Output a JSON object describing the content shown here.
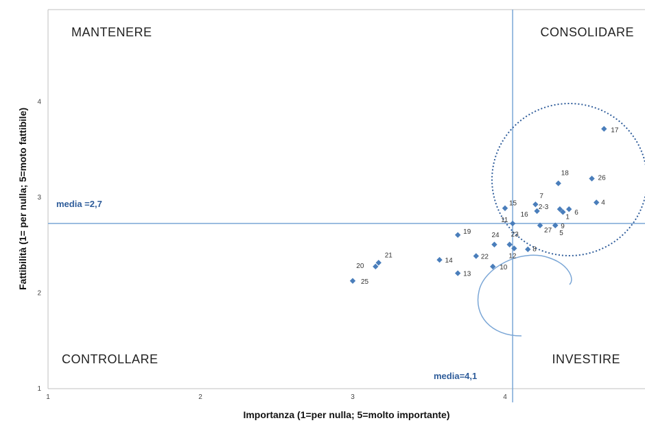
{
  "chart_data": {
    "type": "scatter",
    "xlabel": "Importanza (1=per nulla; 5=molto importante)",
    "ylabel": "Fattibilità (1= per nulla; 5=moto fattibile)",
    "xlim": [
      1,
      4.9
    ],
    "ylim": [
      1,
      5
    ],
    "xticks": [
      "1",
      "2",
      "3",
      "4"
    ],
    "yticks": [
      "1",
      "2",
      "3",
      "4"
    ],
    "grid": false,
    "quadrants": {
      "top_left": "MANTENERE",
      "top_right": "CONSOLIDARE",
      "bottom_left": "CONTROLLARE",
      "bottom_right": "INVESTIRE"
    },
    "mean_x": {
      "value": 4.05,
      "label": "media=4,1"
    },
    "mean_y": {
      "value": 2.72,
      "label": "media =2,7"
    },
    "marker_color": "#4a7ebb",
    "line_color": "#7aa6d6",
    "points": [
      {
        "label": "1",
        "x": 4.38,
        "y": 2.84
      },
      {
        "label": "2-3",
        "x": 4.36,
        "y": 2.87
      },
      {
        "label": "4",
        "x": 4.6,
        "y": 2.94
      },
      {
        "label": "5",
        "x": 4.33,
        "y": 2.7
      },
      {
        "label": "6",
        "x": 4.42,
        "y": 2.87
      },
      {
        "label": "7",
        "x": 4.2,
        "y": 2.92
      },
      {
        "label": "8",
        "x": 4.15,
        "y": 2.45
      },
      {
        "label": "9",
        "x": 4.33,
        "y": 2.7
      },
      {
        "label": "10",
        "x": 3.92,
        "y": 2.27
      },
      {
        "label": "11",
        "x": 4.05,
        "y": 2.72
      },
      {
        "label": "12",
        "x": 4.06,
        "y": 2.46
      },
      {
        "label": "13",
        "x": 3.69,
        "y": 2.2
      },
      {
        "label": "14",
        "x": 3.57,
        "y": 2.34
      },
      {
        "label": "15",
        "x": 4.0,
        "y": 2.88
      },
      {
        "label": "16",
        "x": 4.21,
        "y": 2.85
      },
      {
        "label": "17",
        "x": 4.65,
        "y": 3.71
      },
      {
        "label": "18",
        "x": 4.35,
        "y": 3.14
      },
      {
        "label": "19",
        "x": 3.69,
        "y": 2.6
      },
      {
        "label": "20",
        "x": 3.15,
        "y": 2.27
      },
      {
        "label": "21",
        "x": 3.17,
        "y": 2.31
      },
      {
        "label": "22",
        "x": 3.81,
        "y": 2.38
      },
      {
        "label": "23",
        "x": 4.03,
        "y": 2.5
      },
      {
        "label": "24",
        "x": 3.93,
        "y": 2.5
      },
      {
        "label": "25",
        "x": 3.0,
        "y": 2.12
      },
      {
        "label": "26",
        "x": 4.57,
        "y": 3.19
      },
      {
        "label": "27",
        "x": 4.23,
        "y": 2.7
      }
    ]
  }
}
